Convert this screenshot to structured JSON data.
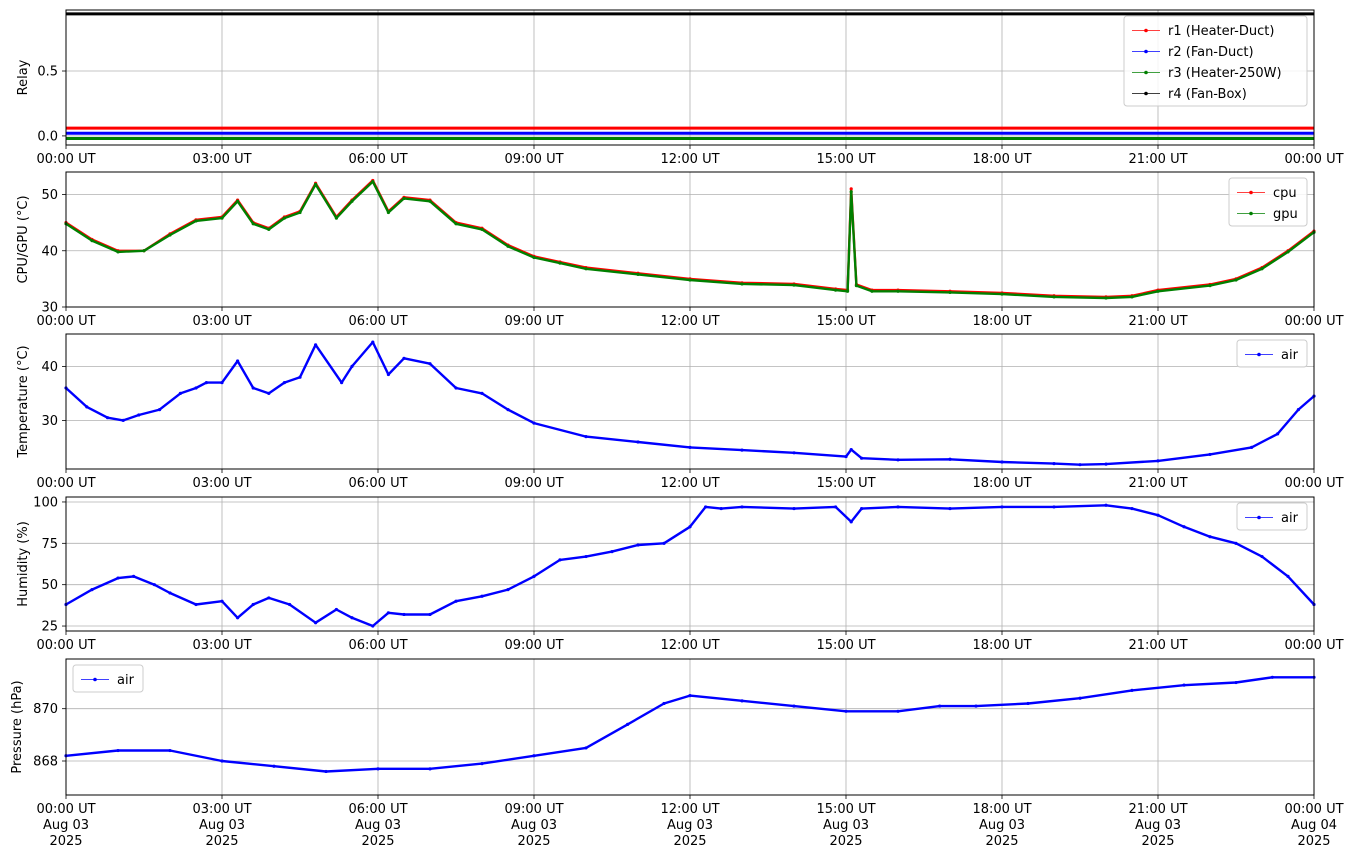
{
  "chart_data": [
    {
      "type": "line",
      "ylabel": "Relay",
      "xlabel": "",
      "ylim": [
        -0.07,
        0.97
      ],
      "yticks": [
        {
          "v": 0.0,
          "label": "0.0"
        },
        {
          "v": 0.5,
          "label": "0.5"
        }
      ],
      "x_tick_labels": [
        "00:00 UT",
        "03:00 UT",
        "06:00 UT",
        "09:00 UT",
        "12:00 UT",
        "15:00 UT",
        "18:00 UT",
        "21:00 UT",
        "00:00 UT"
      ],
      "grid": true,
      "legend_position": "top-right",
      "series": [
        {
          "name": "r1 (Heater-Duct)",
          "color": "#ff0000",
          "points": [
            [
              0,
              0.06
            ],
            [
              24,
              0.06
            ]
          ]
        },
        {
          "name": "r2 (Fan-Duct)",
          "color": "#0000ff",
          "points": [
            [
              0,
              0.02
            ],
            [
              24,
              0.02
            ]
          ]
        },
        {
          "name": "r3 (Heater-250W)",
          "color": "#008000",
          "points": [
            [
              0,
              -0.02
            ],
            [
              24,
              -0.02
            ]
          ]
        },
        {
          "name": "r4 (Fan-Box)",
          "color": "#000000",
          "points": [
            [
              0,
              0.94
            ],
            [
              24,
              0.94
            ]
          ]
        }
      ]
    },
    {
      "type": "line",
      "ylabel": "CPU/GPU (°C)",
      "xlabel": "",
      "ylim": [
        30,
        54
      ],
      "yticks": [
        {
          "v": 30,
          "label": "30"
        },
        {
          "v": 40,
          "label": "40"
        },
        {
          "v": 50,
          "label": "50"
        }
      ],
      "x_tick_labels": [
        "00:00 UT",
        "03:00 UT",
        "06:00 UT",
        "09:00 UT",
        "12:00 UT",
        "15:00 UT",
        "18:00 UT",
        "21:00 UT",
        "00:00 UT"
      ],
      "grid": true,
      "legend_position": "top-right",
      "series": [
        {
          "name": "cpu",
          "color": "#ff0000",
          "points": [
            [
              0,
              45
            ],
            [
              0.5,
              42
            ],
            [
              1,
              40
            ],
            [
              1.5,
              40
            ],
            [
              2,
              43
            ],
            [
              2.5,
              45.5
            ],
            [
              3,
              46
            ],
            [
              3.3,
              49
            ],
            [
              3.6,
              45
            ],
            [
              3.9,
              44
            ],
            [
              4.2,
              46
            ],
            [
              4.5,
              47
            ],
            [
              4.8,
              52
            ],
            [
              5.2,
              46
            ],
            [
              5.5,
              49
            ],
            [
              5.9,
              52.5
            ],
            [
              6.2,
              47
            ],
            [
              6.5,
              49.5
            ],
            [
              7,
              49
            ],
            [
              7.5,
              45
            ],
            [
              8,
              44
            ],
            [
              8.5,
              41
            ],
            [
              9,
              39
            ],
            [
              9.5,
              38
            ],
            [
              10,
              37
            ],
            [
              11,
              36
            ],
            [
              12,
              35
            ],
            [
              13,
              34.3
            ],
            [
              14,
              34.1
            ],
            [
              14.8,
              33.2
            ],
            [
              15.03,
              33
            ],
            [
              15.1,
              51
            ],
            [
              15.2,
              34
            ],
            [
              15.5,
              33
            ],
            [
              16,
              33
            ],
            [
              17,
              32.8
            ],
            [
              18,
              32.5
            ],
            [
              19,
              32
            ],
            [
              20,
              31.8
            ],
            [
              20.5,
              32
            ],
            [
              21,
              33
            ],
            [
              22,
              34
            ],
            [
              22.5,
              35
            ],
            [
              23,
              37
            ],
            [
              23.5,
              40
            ],
            [
              24,
              43.5
            ]
          ]
        },
        {
          "name": "gpu",
          "color": "#008000",
          "points": [
            [
              0,
              44.8
            ],
            [
              0.5,
              41.8
            ],
            [
              1,
              39.8
            ],
            [
              1.5,
              40
            ],
            [
              2,
              42.8
            ],
            [
              2.5,
              45.3
            ],
            [
              3,
              45.8
            ],
            [
              3.3,
              48.8
            ],
            [
              3.6,
              44.8
            ],
            [
              3.9,
              43.8
            ],
            [
              4.2,
              45.8
            ],
            [
              4.5,
              46.8
            ],
            [
              4.8,
              51.8
            ],
            [
              5.2,
              45.8
            ],
            [
              5.5,
              48.8
            ],
            [
              5.9,
              52.3
            ],
            [
              6.2,
              46.8
            ],
            [
              6.5,
              49.3
            ],
            [
              7,
              48.8
            ],
            [
              7.5,
              44.8
            ],
            [
              8,
              43.8
            ],
            [
              8.5,
              40.8
            ],
            [
              9,
              38.8
            ],
            [
              9.5,
              37.8
            ],
            [
              10,
              36.8
            ],
            [
              11,
              35.8
            ],
            [
              12,
              34.8
            ],
            [
              13,
              34.1
            ],
            [
              14,
              33.9
            ],
            [
              14.8,
              33.0
            ],
            [
              15.03,
              32.8
            ],
            [
              15.1,
              50.5
            ],
            [
              15.2,
              33.8
            ],
            [
              15.5,
              32.8
            ],
            [
              16,
              32.8
            ],
            [
              17,
              32.6
            ],
            [
              18,
              32.3
            ],
            [
              19,
              31.8
            ],
            [
              20,
              31.6
            ],
            [
              20.5,
              31.8
            ],
            [
              21,
              32.8
            ],
            [
              22,
              33.8
            ],
            [
              22.5,
              34.8
            ],
            [
              23,
              36.8
            ],
            [
              23.5,
              39.8
            ],
            [
              24,
              43.3
            ]
          ]
        }
      ]
    },
    {
      "type": "line",
      "ylabel": "Temperature (°C)",
      "xlabel": "",
      "ylim": [
        21,
        46
      ],
      "yticks": [
        {
          "v": 30,
          "label": "30"
        },
        {
          "v": 40,
          "label": "40"
        }
      ],
      "x_tick_labels": [
        "00:00 UT",
        "03:00 UT",
        "06:00 UT",
        "09:00 UT",
        "12:00 UT",
        "15:00 UT",
        "18:00 UT",
        "21:00 UT",
        "00:00 UT"
      ],
      "grid": true,
      "legend_position": "top-right",
      "series": [
        {
          "name": "air",
          "color": "#0000ff",
          "points": [
            [
              0,
              36
            ],
            [
              0.4,
              32.5
            ],
            [
              0.8,
              30.5
            ],
            [
              1.1,
              30
            ],
            [
              1.4,
              31
            ],
            [
              1.8,
              32
            ],
            [
              2.2,
              35
            ],
            [
              2.5,
              36
            ],
            [
              2.7,
              37
            ],
            [
              3,
              37
            ],
            [
              3.3,
              41
            ],
            [
              3.6,
              36
            ],
            [
              3.9,
              35
            ],
            [
              4.2,
              37
            ],
            [
              4.5,
              38
            ],
            [
              4.8,
              44
            ],
            [
              5.3,
              37
            ],
            [
              5.5,
              40
            ],
            [
              5.9,
              44.5
            ],
            [
              6.2,
              38.5
            ],
            [
              6.5,
              41.5
            ],
            [
              7,
              40.5
            ],
            [
              7.5,
              36
            ],
            [
              8,
              35
            ],
            [
              8.5,
              32
            ],
            [
              9,
              29.5
            ],
            [
              10,
              27
            ],
            [
              11,
              26
            ],
            [
              12,
              25
            ],
            [
              13,
              24.5
            ],
            [
              14,
              24
            ],
            [
              15,
              23.3
            ],
            [
              15.1,
              24.6
            ],
            [
              15.3,
              23
            ],
            [
              16,
              22.7
            ],
            [
              17,
              22.8
            ],
            [
              18,
              22.3
            ],
            [
              19,
              22
            ],
            [
              19.5,
              21.8
            ],
            [
              20,
              21.9
            ],
            [
              21,
              22.5
            ],
            [
              22,
              23.7
            ],
            [
              22.8,
              25
            ],
            [
              23.3,
              27.5
            ],
            [
              23.7,
              32
            ],
            [
              24,
              34.5
            ]
          ]
        }
      ]
    },
    {
      "type": "line",
      "ylabel": "Humidity (%)",
      "xlabel": "",
      "ylim": [
        22,
        103
      ],
      "yticks": [
        {
          "v": 25,
          "label": "25"
        },
        {
          "v": 50,
          "label": "50"
        },
        {
          "v": 75,
          "label": "75"
        },
        {
          "v": 100,
          "label": "100"
        }
      ],
      "x_tick_labels": [
        "00:00 UT",
        "03:00 UT",
        "06:00 UT",
        "09:00 UT",
        "12:00 UT",
        "15:00 UT",
        "18:00 UT",
        "21:00 UT",
        "00:00 UT"
      ],
      "grid": true,
      "legend_position": "top-right",
      "series": [
        {
          "name": "air",
          "color": "#0000ff",
          "points": [
            [
              0,
              38
            ],
            [
              0.5,
              47
            ],
            [
              1,
              54
            ],
            [
              1.3,
              55
            ],
            [
              1.7,
              50
            ],
            [
              2,
              45
            ],
            [
              2.5,
              38
            ],
            [
              3,
              40
            ],
            [
              3.3,
              30
            ],
            [
              3.6,
              38
            ],
            [
              3.9,
              42
            ],
            [
              4.3,
              38
            ],
            [
              4.8,
              27
            ],
            [
              5.2,
              35
            ],
            [
              5.5,
              30
            ],
            [
              5.9,
              25
            ],
            [
              6.2,
              33
            ],
            [
              6.5,
              32
            ],
            [
              7,
              32
            ],
            [
              7.5,
              40
            ],
            [
              8,
              43
            ],
            [
              8.5,
              47
            ],
            [
              9,
              55
            ],
            [
              9.5,
              65
            ],
            [
              10,
              67
            ],
            [
              10.5,
              70
            ],
            [
              11,
              74
            ],
            [
              11.5,
              75
            ],
            [
              12,
              85
            ],
            [
              12.3,
              97
            ],
            [
              12.6,
              96
            ],
            [
              13,
              97
            ],
            [
              14,
              96
            ],
            [
              14.8,
              97
            ],
            [
              15.1,
              88
            ],
            [
              15.3,
              96
            ],
            [
              16,
              97
            ],
            [
              17,
              96
            ],
            [
              18,
              97
            ],
            [
              19,
              97
            ],
            [
              20,
              98
            ],
            [
              20.5,
              96
            ],
            [
              21,
              92
            ],
            [
              21.5,
              85
            ],
            [
              22,
              79
            ],
            [
              22.5,
              75
            ],
            [
              23,
              67
            ],
            [
              23.5,
              55
            ],
            [
              24,
              38
            ]
          ]
        }
      ]
    },
    {
      "type": "line",
      "ylabel": "Pressure (hPa)",
      "xlabel": "",
      "ylim": [
        866.7,
        871.9
      ],
      "yticks": [
        {
          "v": 868,
          "label": "868"
        },
        {
          "v": 870,
          "label": "870"
        }
      ],
      "x_tick_labels": [
        "00:00 UT\nAug 03\n2025",
        "03:00 UT\nAug 03\n2025",
        "06:00 UT\nAug 03\n2025",
        "09:00 UT\nAug 03\n2025",
        "12:00 UT\nAug 03\n2025",
        "15:00 UT\nAug 03\n2025",
        "18:00 UT\nAug 03\n2025",
        "21:00 UT\nAug 03\n2025",
        "00:00 UT\nAug 04\n2025"
      ],
      "grid": true,
      "legend_position": "top-left",
      "series": [
        {
          "name": "air",
          "color": "#0000ff",
          "points": [
            [
              0,
              868.2
            ],
            [
              1,
              868.4
            ],
            [
              2,
              868.4
            ],
            [
              3,
              868.0
            ],
            [
              4,
              867.8
            ],
            [
              5,
              867.6
            ],
            [
              6,
              867.7
            ],
            [
              7,
              867.7
            ],
            [
              8,
              867.9
            ],
            [
              9,
              868.2
            ],
            [
              10,
              868.5
            ],
            [
              10.8,
              869.4
            ],
            [
              11.5,
              870.2
            ],
            [
              12,
              870.5
            ],
            [
              13,
              870.3
            ],
            [
              14,
              870.1
            ],
            [
              15,
              869.9
            ],
            [
              16,
              869.9
            ],
            [
              16.8,
              870.1
            ],
            [
              17.5,
              870.1
            ],
            [
              18.5,
              870.2
            ],
            [
              19.5,
              870.4
            ],
            [
              20.5,
              870.7
            ],
            [
              21.5,
              870.9
            ],
            [
              22.5,
              871.0
            ],
            [
              23.2,
              871.2
            ],
            [
              24,
              871.2
            ]
          ]
        }
      ]
    }
  ]
}
